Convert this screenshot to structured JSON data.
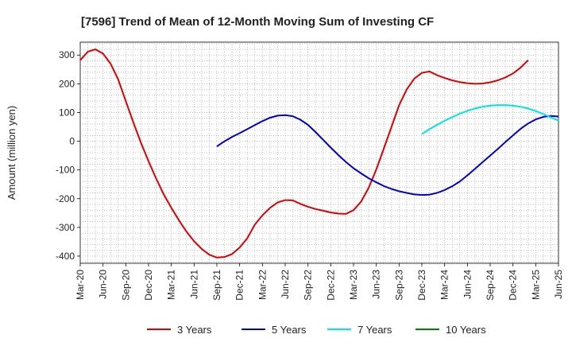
{
  "chart_data": {
    "type": "line",
    "title": "[7596]  Trend of Mean of 12-Month Moving Sum of Investing CF",
    "xlabel": "",
    "ylabel": "Amount (million yen)",
    "ylim": [
      -425,
      345
    ],
    "yticks": [
      300,
      200,
      100,
      0,
      -100,
      -200,
      -300,
      -400
    ],
    "x_tick_labels": [
      "Mar-20",
      "Jun-20",
      "Sep-20",
      "Dec-20",
      "Mar-21",
      "Jun-21",
      "Sep-21",
      "Dec-21",
      "Mar-22",
      "Jun-22",
      "Sep-22",
      "Dec-22",
      "Mar-23",
      "Jun-23",
      "Sep-23",
      "Dec-23",
      "Mar-24",
      "Jun-24",
      "Sep-24",
      "Dec-24",
      "Mar-25",
      "Jun-25"
    ],
    "x_range_months": [
      0,
      63
    ],
    "grid": true,
    "legend_position": "bottom",
    "series": [
      {
        "name": "3 Years",
        "color": "#dd0000",
        "start_month": 0,
        "values": [
          282,
          312,
          320,
          305,
          270,
          215,
          140,
          65,
          -5,
          -70,
          -130,
          -185,
          -232,
          -275,
          -315,
          -348,
          -375,
          -395,
          -405,
          -403,
          -393,
          -370,
          -338,
          -290,
          -258,
          -232,
          -213,
          -205,
          -206,
          -218,
          -228,
          -236,
          -242,
          -248,
          -252,
          -253,
          -240,
          -210,
          -162,
          -98,
          -25,
          50,
          125,
          180,
          218,
          238,
          243,
          230,
          220,
          212,
          206,
          202,
          200,
          201,
          205,
          212,
          222,
          236,
          256,
          282
        ]
      },
      {
        "name": "5 Years",
        "color": "#0000cc",
        "start_month": 18,
        "values": [
          -18,
          0,
          15,
          28,
          42,
          56,
          70,
          82,
          89,
          91,
          87,
          75,
          57,
          32,
          5,
          -22,
          -48,
          -72,
          -94,
          -112,
          -129,
          -143,
          -156,
          -166,
          -174,
          -180,
          -185,
          -187,
          -186,
          -180,
          -170,
          -157,
          -140,
          -119,
          -96,
          -73,
          -50,
          -27,
          -3,
          20,
          43,
          62,
          76,
          85,
          88,
          86
        ]
      },
      {
        "name": "7 Years",
        "color": "#00e5e5",
        "start_month": 45,
        "values": [
          25,
          42,
          57,
          71,
          84,
          96,
          106,
          114,
          120,
          124,
          126,
          126,
          124,
          120,
          114,
          105,
          95,
          83,
          72
        ]
      },
      {
        "name": "10 Years",
        "color": "#008000",
        "start_month": 0,
        "values": []
      }
    ]
  }
}
